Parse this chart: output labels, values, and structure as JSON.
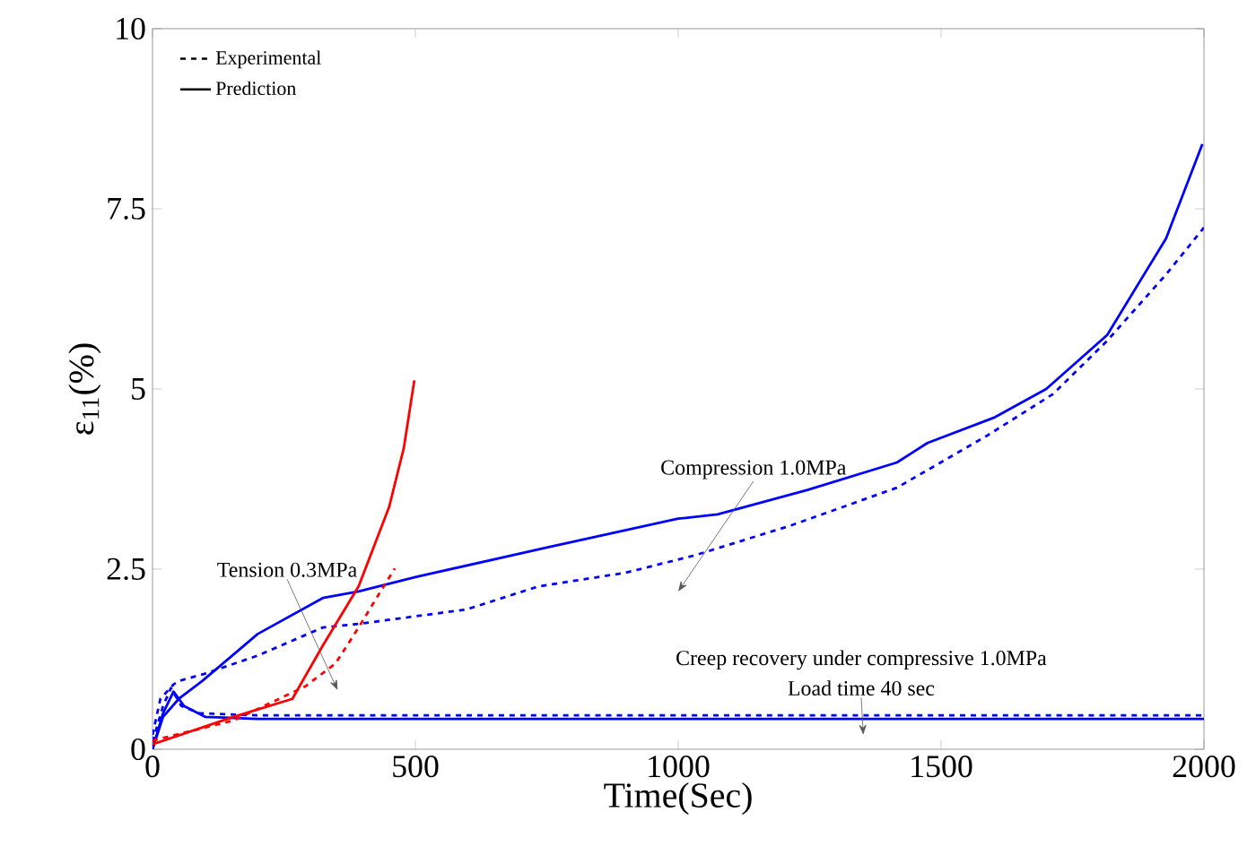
{
  "chart_data": {
    "type": "line",
    "xlabel": "Time(Sec)",
    "ylabel": "ε$_{11}$(%)",
    "xlim": [
      0,
      2000
    ],
    "xticks": [
      0,
      500,
      1000,
      1500,
      2000
    ],
    "ylim": [
      0,
      10
    ],
    "yticks": [
      0,
      2.5,
      5,
      7.5,
      10
    ],
    "grid": false,
    "legend": "top left",
    "marker": "none",
    "series": [
      {
        "name": "Experimental",
        "color": "#000000",
        "line_style": "dashed"
      },
      {
        "name": "Prediction",
        "color": "#000000",
        "line_style": "solid"
      },
      {
        "color": "#0000ff",
        "line_style": "solid",
        "x": [
          0,
          20,
          50,
          95,
          200,
          324,
          392,
          500,
          750,
          1000,
          1075,
          1246,
          1416,
          1474,
          1600,
          1700,
          1816,
          1928,
          1997
        ],
        "values": [
          0,
          0.45,
          0.7,
          0.95,
          1.6,
          2.1,
          2.19,
          2.39,
          2.8,
          3.2,
          3.26,
          3.6,
          3.98,
          4.25,
          4.6,
          5.0,
          5.75,
          7.09,
          8.4
        ]
      },
      {
        "color": "#0000ff",
        "line_style": "dashed",
        "x": [
          0,
          15,
          40,
          51,
          100,
          200,
          324,
          392,
          597,
          734,
          900,
          1031,
          1212,
          1416,
          1587,
          1713,
          1816,
          1928,
          2000
        ],
        "values": [
          0.2,
          0.7,
          0.9,
          0.95,
          1.05,
          1.3,
          1.69,
          1.74,
          1.94,
          2.26,
          2.45,
          2.69,
          3.1,
          3.63,
          4.35,
          4.93,
          5.67,
          6.59,
          7.24
        ]
      },
      {
        "color": "#0000ff",
        "line_style": "solid",
        "x": [
          0,
          20,
          40,
          60,
          100,
          200,
          2000
        ],
        "values": [
          0,
          0.5,
          0.8,
          0.6,
          0.45,
          0.42,
          0.42
        ]
      },
      {
        "color": "#0000ff",
        "line_style": "dashed",
        "x": [
          0,
          20,
          35,
          55,
          90,
          200,
          2000
        ],
        "values": [
          0.1,
          0.6,
          0.85,
          0.6,
          0.5,
          0.47,
          0.47
        ]
      },
      {
        "color": "#ff0000",
        "line_style": "solid",
        "x": [
          0,
          154,
          266,
          324,
          392,
          450,
          478,
          498
        ],
        "values": [
          0.07,
          0.45,
          0.7,
          1.44,
          2.26,
          3.36,
          4.18,
          5.12
        ]
      },
      {
        "color": "#ff0000",
        "line_style": "dashed",
        "x": [
          0,
          154,
          290,
          348,
          392,
          427,
          461
        ],
        "values": [
          0.12,
          0.4,
          0.87,
          1.19,
          1.69,
          2.11,
          2.51
        ]
      }
    ],
    "annotations": [
      "Tension 0.3MPa",
      "Compression 1.0MPa",
      "Creep recovery under compressive 1.0MPa",
      "Load time 40 sec"
    ]
  }
}
